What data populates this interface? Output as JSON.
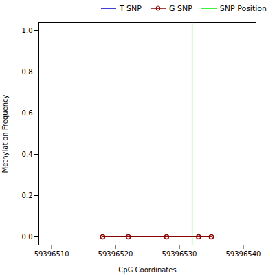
{
  "chart_data": {
    "type": "line",
    "xlabel": "CpG Coordinates",
    "ylabel": "Methylation Frequency",
    "xlim": [
      59396508,
      59396542
    ],
    "ylim": [
      -0.04,
      1.04
    ],
    "xticks": [
      59396510,
      59396520,
      59396530,
      59396540
    ],
    "yticks": [
      {
        "value": 0.0,
        "label": "0.0"
      },
      0.2,
      0.4,
      0.6,
      0.8,
      {
        "value": 1.0,
        "label": "1.0"
      }
    ],
    "grid": false,
    "legend": "upper right",
    "series": [
      {
        "name": "T SNP",
        "color": "#0000CD",
        "x": [],
        "values": []
      },
      {
        "name": "G SNP",
        "color": "#8B0000",
        "marker": "circle",
        "x": [
          59396518,
          59396522,
          59396528,
          59396533,
          59396535
        ],
        "values": [
          0.0,
          0.0,
          0.0,
          0.0,
          0.0
        ]
      },
      {
        "name": "SNP Position",
        "color": "#00EE00",
        "type": "vline",
        "x": [
          59396532
        ]
      }
    ]
  }
}
